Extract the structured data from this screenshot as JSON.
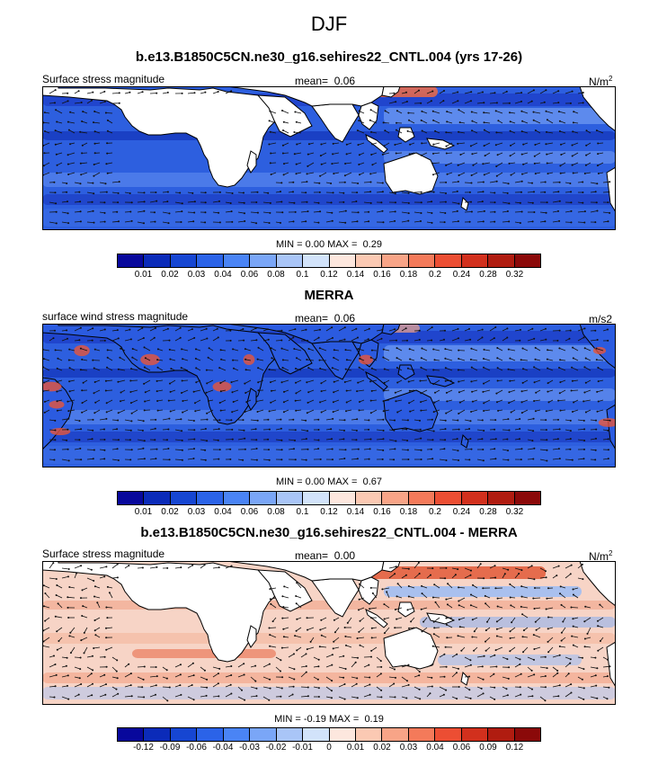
{
  "figure_title": "DJF",
  "colors_levels": [
    "#08089c",
    "#0b2bb9",
    "#1646d2",
    "#2b63e8",
    "#4a84f5",
    "#7aa6f7",
    "#a9c5f7",
    "#d2e3fa",
    "#fde7de",
    "#fbc9b3",
    "#f8a487",
    "#f47a5a",
    "#ec4e33",
    "#d2301d",
    "#b01c10",
    "#8b0909"
  ],
  "panels": [
    {
      "title": "b.e13.B1850C5CN.ne30_g16.sehires22_CNTL.004 (yrs 17-26)",
      "left_label": "Surface stress magnitude",
      "mean_label": "mean=",
      "mean_value": "0.06",
      "units": "N/m",
      "units_sup": "2",
      "min_label": "MIN =",
      "min_value": "0.00",
      "max_label": "MAX =",
      "max_value": "0.29",
      "ticks": [
        "0.01",
        "0.02",
        "0.03",
        "0.04",
        "0.06",
        "0.08",
        "0.1",
        "0.12",
        "0.14",
        "0.16",
        "0.18",
        "0.2",
        "0.24",
        "0.28",
        "0.32"
      ],
      "field": "model"
    },
    {
      "title": "MERRA",
      "left_label": "surface wind stress magnitude",
      "mean_label": "mean=",
      "mean_value": "0.06",
      "units": "m/s2",
      "units_sup": "",
      "min_label": "MIN =",
      "min_value": "0.00",
      "max_label": "MAX =",
      "max_value": "0.67",
      "ticks": [
        "0.01",
        "0.02",
        "0.03",
        "0.04",
        "0.06",
        "0.08",
        "0.1",
        "0.12",
        "0.14",
        "0.16",
        "0.18",
        "0.2",
        "0.24",
        "0.28",
        "0.32"
      ],
      "field": "obs"
    },
    {
      "title": "b.e13.B1850C5CN.ne30_g16.sehires22_CNTL.004 - MERRA",
      "left_label": "Surface stress magnitude",
      "mean_label": "mean=",
      "mean_value": "0.00",
      "units": "N/m",
      "units_sup": "2",
      "min_label": "MIN =",
      "min_value": "-0.19",
      "max_label": "MAX =",
      "max_value": "0.19",
      "ticks": [
        "-0.12",
        "-0.09",
        "-0.06",
        "-0.04",
        "-0.03",
        "-0.02",
        "-0.01",
        "0",
        "0.01",
        "0.02",
        "0.03",
        "0.04",
        "0.06",
        "0.09",
        "0.12"
      ],
      "field": "diff"
    }
  ]
}
